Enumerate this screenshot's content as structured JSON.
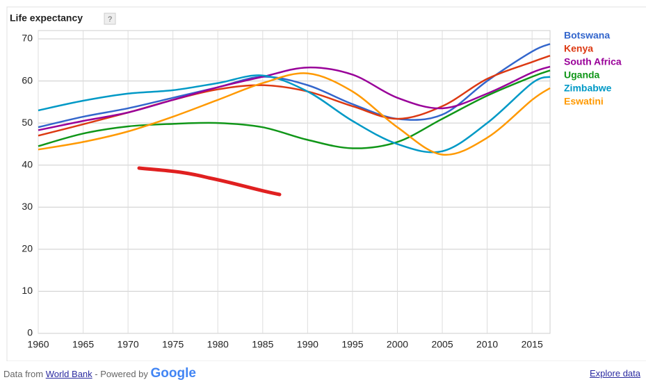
{
  "chart_data": {
    "type": "line",
    "title": "Life expectancy",
    "help_icon": "?",
    "x": [
      1960,
      1965,
      1970,
      1975,
      1980,
      1985,
      1990,
      1995,
      2000,
      2005,
      2010,
      2015,
      2017
    ],
    "series": [
      {
        "name": "Botswana",
        "color": "#3366cc",
        "values": [
          49,
          51.5,
          53.5,
          56,
          58.5,
          61,
          59,
          54.5,
          51,
          52,
          60,
          67,
          68.8
        ]
      },
      {
        "name": "Kenya",
        "color": "#dc3912",
        "values": [
          47,
          49.7,
          52.5,
          55.5,
          58,
          59,
          57.5,
          54,
          51,
          54,
          60.5,
          64.5,
          66
        ]
      },
      {
        "name": "South Africa",
        "color": "#990099",
        "values": [
          48.3,
          50.5,
          52.5,
          55.5,
          58.5,
          61,
          63.2,
          61.5,
          56,
          53.5,
          57,
          62,
          63.4
        ]
      },
      {
        "name": "Uganda",
        "color": "#109618",
        "values": [
          44.5,
          47.5,
          49.2,
          49.8,
          50,
          49,
          46,
          44,
          45.5,
          51,
          56.5,
          61,
          62.5
        ]
      },
      {
        "name": "Zimbabwe",
        "color": "#0099c6",
        "values": [
          53,
          55.3,
          57,
          57.8,
          59.5,
          61.3,
          57.5,
          50.5,
          45,
          43.3,
          50,
          59.5,
          61
        ]
      },
      {
        "name": "Eswatini",
        "color": "#ff9900",
        "values": [
          43.7,
          45.5,
          48,
          51.5,
          55.5,
          59.5,
          61.8,
          57.5,
          49,
          42.5,
          46.5,
          55.5,
          58.3
        ]
      }
    ],
    "xlim": [
      1960,
      2017
    ],
    "xticks": [
      1960,
      1965,
      1970,
      1975,
      1980,
      1985,
      1990,
      1995,
      2000,
      2005,
      2010,
      2015
    ],
    "ylim": [
      0,
      70
    ],
    "yticks": [
      0,
      10,
      20,
      30,
      40,
      50,
      60,
      70
    ],
    "grid": true,
    "legend": "right"
  },
  "footer": {
    "source_prefix": "Data from",
    "source_link": "World Bank",
    "powered": "- Powered by",
    "brand": "Google",
    "explore": "Explore data"
  }
}
